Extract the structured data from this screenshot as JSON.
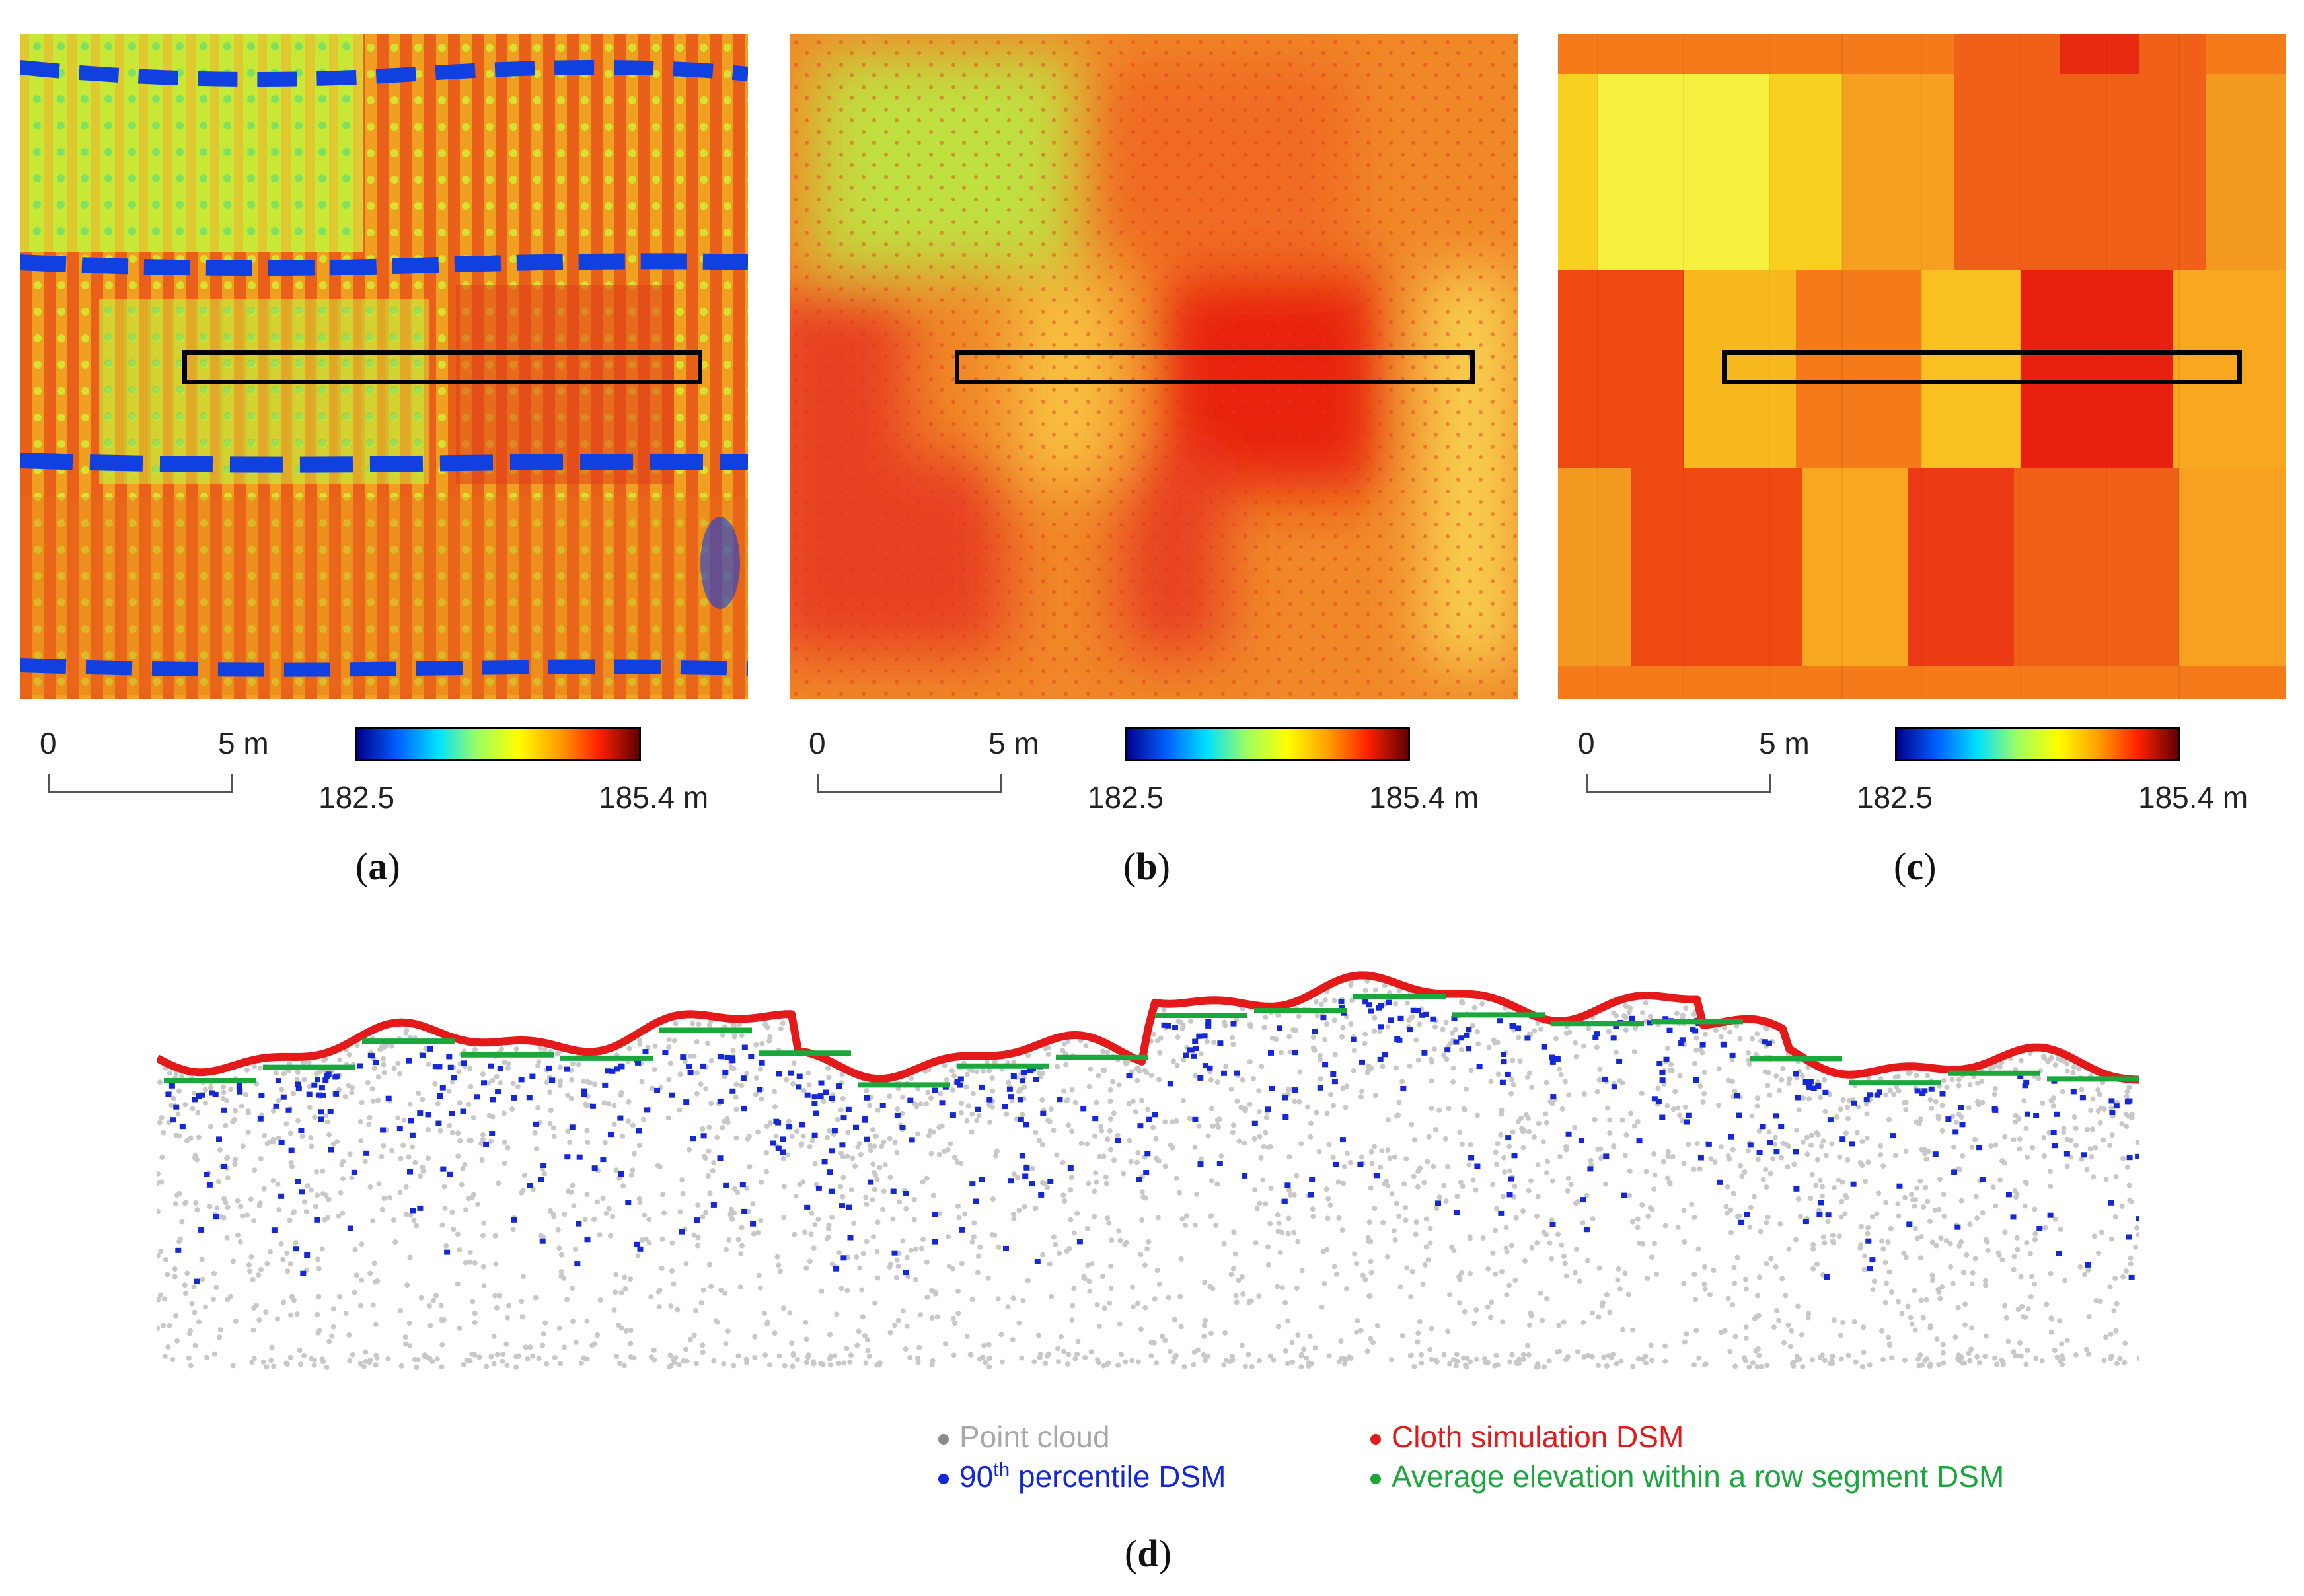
{
  "panels": [
    {
      "id": "a",
      "label": "a",
      "scale_zero": "0",
      "scale_len": "5 m",
      "cbar_min": "182.5",
      "cbar_max": "185.4 m"
    },
    {
      "id": "b",
      "label": "b",
      "scale_zero": "0",
      "scale_len": "5 m",
      "cbar_min": "182.5",
      "cbar_max": "185.4 m"
    },
    {
      "id": "c",
      "label": "c",
      "scale_zero": "0",
      "scale_len": "5 m",
      "cbar_min": "182.5",
      "cbar_max": "185.4 m"
    }
  ],
  "profile_label": "d",
  "legend": {
    "point_cloud": {
      "text": "Point cloud",
      "color": "#a8a8a8"
    },
    "percentile": {
      "text_pre": "90",
      "text_sup": "th",
      "text_post": " percentile DSM",
      "color": "#1428d8"
    },
    "cloth": {
      "text": "Cloth simulation DSM",
      "color": "#e41a1a"
    },
    "average": {
      "text": "Average elevation within a row segment DSM",
      "color": "#1aa83c"
    }
  },
  "colors": {
    "low": "#00008b",
    "mid": "#ffff00",
    "high": "#ff2000"
  }
}
